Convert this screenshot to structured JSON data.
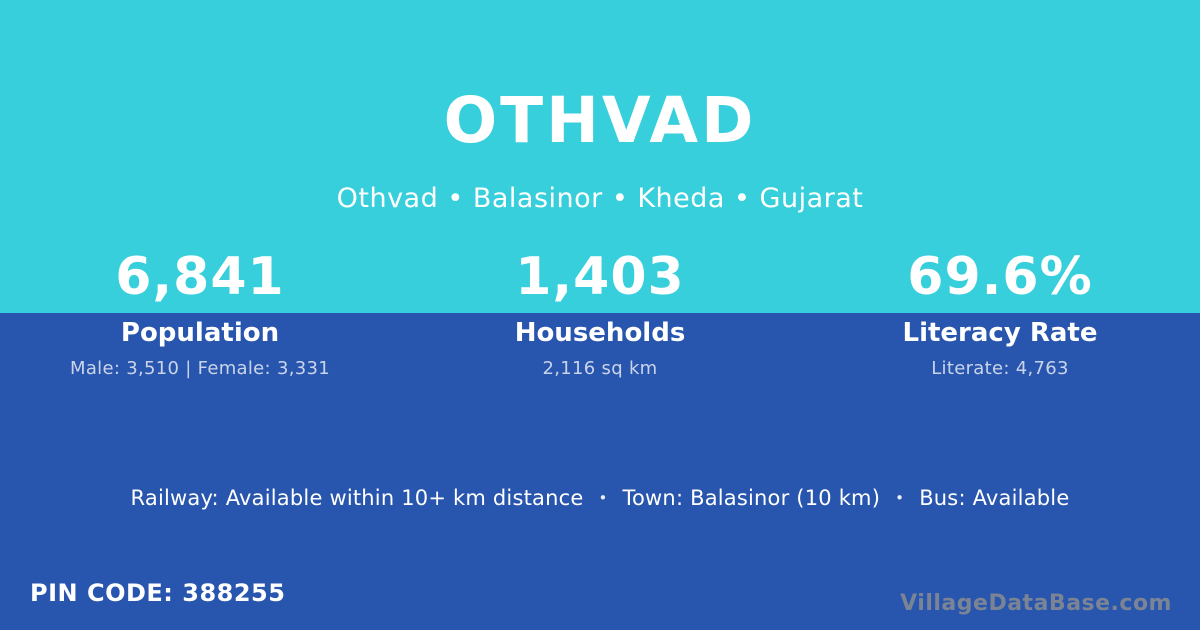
{
  "header": {
    "title": "OTHVAD",
    "breadcrumb": "Othvad • Balasinor • Kheda • Gujarat"
  },
  "stats": [
    {
      "value": "6,841",
      "label": "Population",
      "detail": "Male: 3,510 | Female: 3,331"
    },
    {
      "value": "1,403",
      "label": "Households",
      "detail": "2,116 sq km"
    },
    {
      "value": "69.6%",
      "label": "Literacy Rate",
      "detail": "Literate: 4,763"
    }
  ],
  "amenities": {
    "railway": "Railway: Available within 10+ km distance",
    "town": "Town: Balasinor (10 km)",
    "bus": "Bus: Available",
    "separator": "•"
  },
  "footer": {
    "pin_code": "PIN CODE: 388255",
    "watermark": "VillageDataBase.com"
  },
  "colors": {
    "top_background": "#38cfdc",
    "bottom_background": "#2855ad",
    "text": "#ffffff",
    "muted_text": "rgba(255,255,255,0.75)",
    "watermark": "#7b8494"
  }
}
